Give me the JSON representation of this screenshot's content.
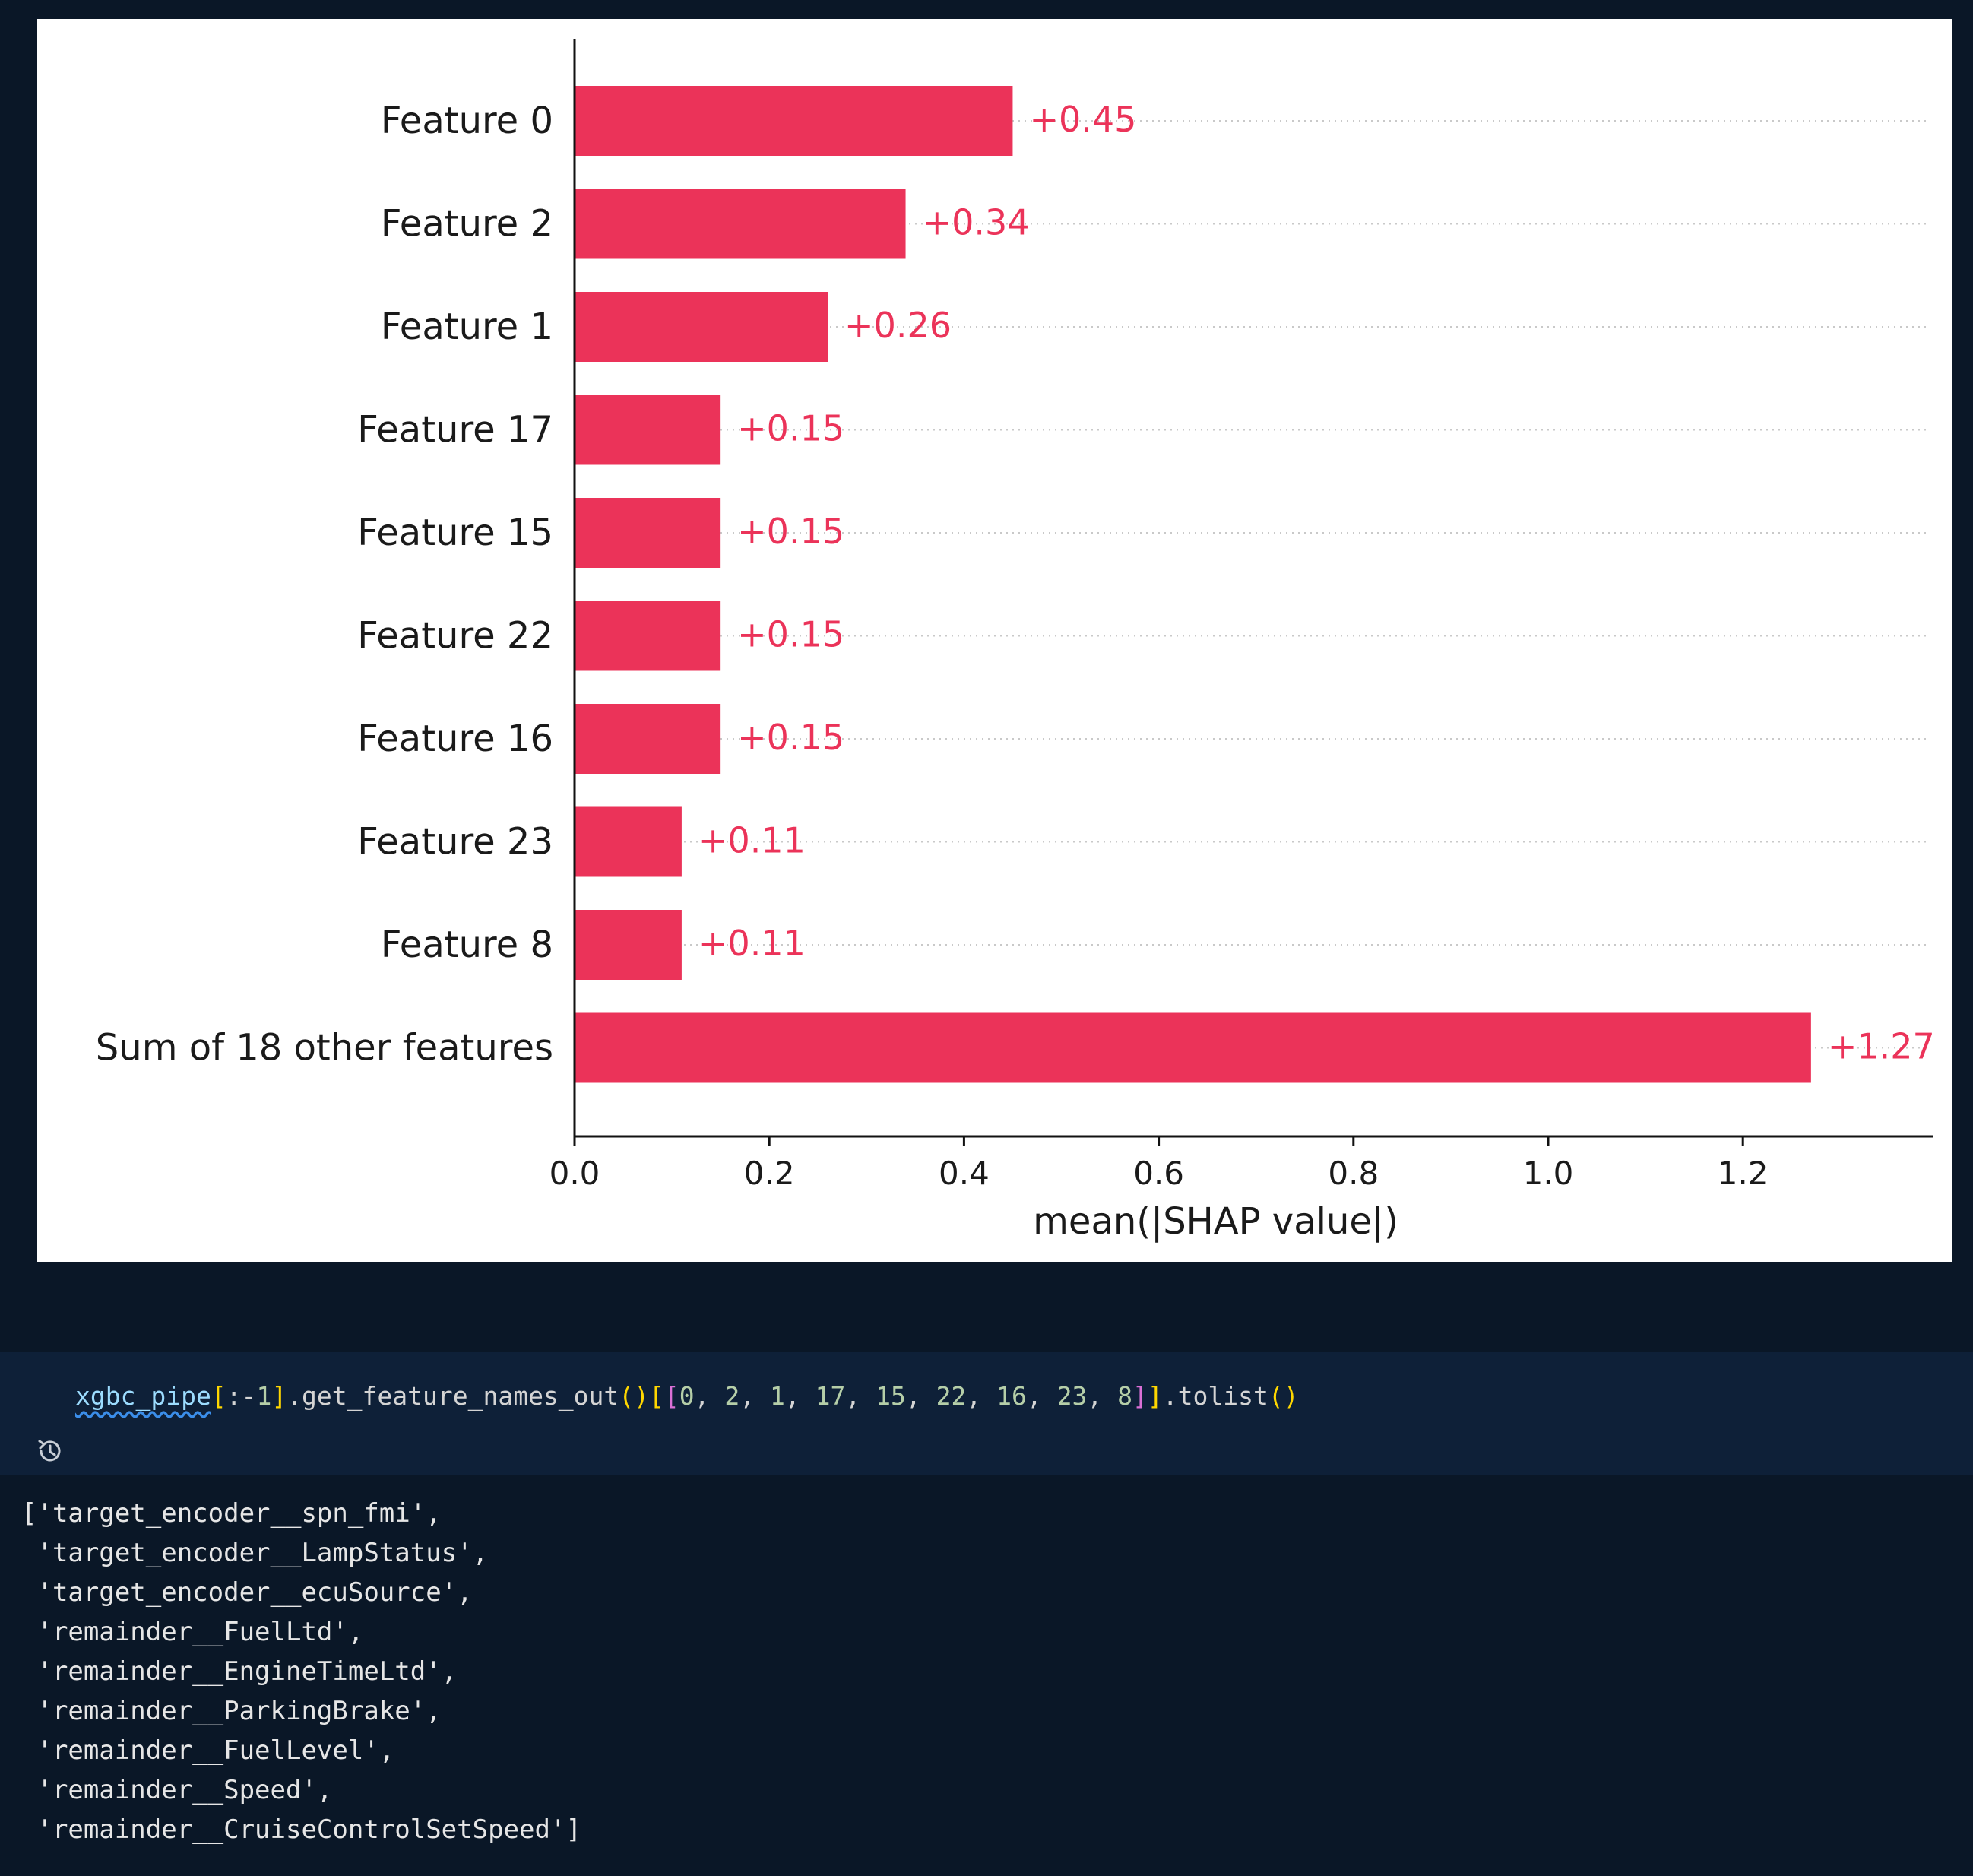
{
  "chart_data": {
    "type": "bar",
    "orientation": "horizontal",
    "categories": [
      "Feature 0",
      "Feature 2",
      "Feature 1",
      "Feature 17",
      "Feature 15",
      "Feature 22",
      "Feature 16",
      "Feature 23",
      "Feature 8",
      "Sum of 18 other features"
    ],
    "values": [
      0.45,
      0.34,
      0.26,
      0.15,
      0.15,
      0.15,
      0.15,
      0.11,
      0.11,
      1.27
    ],
    "value_labels": [
      "+0.45",
      "+0.34",
      "+0.26",
      "+0.15",
      "+0.15",
      "+0.15",
      "+0.15",
      "+0.11",
      "+0.11",
      "+1.27"
    ],
    "xlabel": "mean(|SHAP value|)",
    "xticks": [
      0.0,
      0.2,
      0.4,
      0.6,
      0.8,
      1.0,
      1.2
    ],
    "xtick_labels": [
      "0.0",
      "0.2",
      "0.4",
      "0.6",
      "0.8",
      "1.0",
      "1.2"
    ],
    "xlim": [
      0,
      1.395
    ],
    "bar_color": "#eb3359",
    "grid": "dotted horizontal guide lines"
  },
  "code_cell": {
    "tokens": [
      {
        "text": "xgbc_pipe",
        "cls": "tok-var"
      },
      {
        "text": "[",
        "cls": "tok-bracket1"
      },
      {
        "text": ":-",
        "cls": "tok-plain"
      },
      {
        "text": "1",
        "cls": "tok-num"
      },
      {
        "text": "]",
        "cls": "tok-bracket1"
      },
      {
        "text": ".get_feature_names_out",
        "cls": "tok-plain"
      },
      {
        "text": "()",
        "cls": "tok-bracket1"
      },
      {
        "text": "[",
        "cls": "tok-bracket1"
      },
      {
        "text": "[",
        "cls": "tok-bracket2"
      },
      {
        "text": "0",
        "cls": "tok-num"
      },
      {
        "text": ", ",
        "cls": "tok-plain"
      },
      {
        "text": "2",
        "cls": "tok-num"
      },
      {
        "text": ", ",
        "cls": "tok-plain"
      },
      {
        "text": "1",
        "cls": "tok-num"
      },
      {
        "text": ", ",
        "cls": "tok-plain"
      },
      {
        "text": "17",
        "cls": "tok-num"
      },
      {
        "text": ", ",
        "cls": "tok-plain"
      },
      {
        "text": "15",
        "cls": "tok-num"
      },
      {
        "text": ", ",
        "cls": "tok-plain"
      },
      {
        "text": "22",
        "cls": "tok-num"
      },
      {
        "text": ", ",
        "cls": "tok-plain"
      },
      {
        "text": "16",
        "cls": "tok-num"
      },
      {
        "text": ", ",
        "cls": "tok-plain"
      },
      {
        "text": "23",
        "cls": "tok-num"
      },
      {
        "text": ", ",
        "cls": "tok-plain"
      },
      {
        "text": "8",
        "cls": "tok-num"
      },
      {
        "text": "]",
        "cls": "tok-bracket2"
      },
      {
        "text": "]",
        "cls": "tok-bracket1"
      },
      {
        "text": ".tolist",
        "cls": "tok-plain"
      },
      {
        "text": "()",
        "cls": "tok-bracket1"
      }
    ],
    "history_icon": "history-icon"
  },
  "output": {
    "lines": [
      "['target_encoder__spn_fmi',",
      " 'target_encoder__LampStatus',",
      " 'target_encoder__ecuSource',",
      " 'remainder__FuelLtd',",
      " 'remainder__EngineTimeLtd',",
      " 'remainder__ParkingBrake',",
      " 'remainder__FuelLevel',",
      " 'remainder__Speed',",
      " 'remainder__CruiseControlSetSpeed']"
    ]
  }
}
